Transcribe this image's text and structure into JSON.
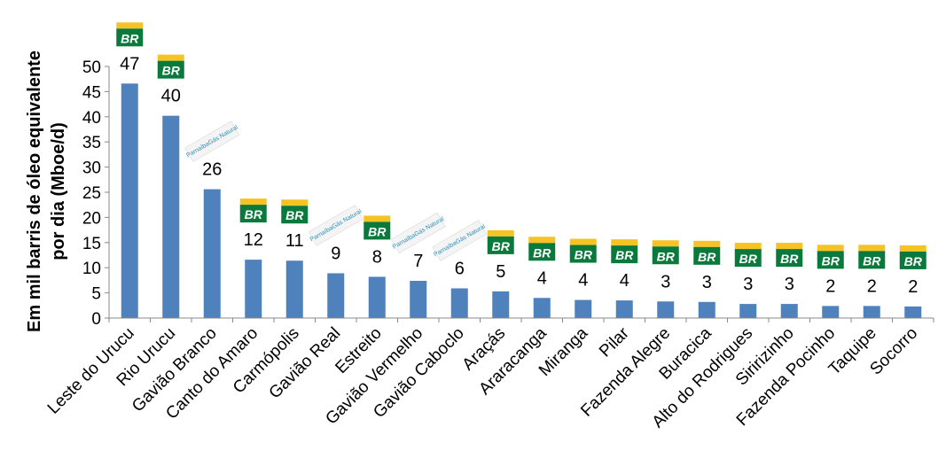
{
  "chart_data": {
    "type": "bar",
    "ylabel": "Em mil barris de óleo equivalente por dia (Mboe/d)",
    "ylabel_lines": [
      "Em mil barris de óleo equivalente",
      "por dia (Mboe/d)"
    ],
    "ylim": [
      0,
      50
    ],
    "yticks": [
      0,
      5,
      10,
      15,
      20,
      25,
      30,
      35,
      40,
      45,
      50
    ],
    "grid": false,
    "bar_color": "#4f81bd",
    "categories": [
      "Leste do Urucu",
      "Rio Urucu",
      "Gavião Branco",
      "Canto do Amaro",
      "Carmópolis",
      "Gavião Real",
      "Estreito",
      "Gavião Vermelho",
      "Gavião Caboclo",
      "Araçás",
      "Araracanga",
      "Miranga",
      "Pilar",
      "Fazenda Alegre",
      "Buracica",
      "Alto do Rodrigues",
      "Siririzinho",
      "Fazenda Pocinho",
      "Taquipe",
      "Socorro"
    ],
    "values": [
      46.6,
      40.2,
      25.6,
      11.6,
      11.4,
      8.9,
      8.2,
      7.4,
      5.9,
      5.3,
      4.0,
      3.6,
      3.5,
      3.3,
      3.2,
      2.8,
      2.8,
      2.4,
      2.4,
      2.3
    ],
    "data_labels": [
      "47",
      "40",
      "26",
      "12",
      "11",
      "9",
      "8",
      "7",
      "6",
      "5",
      "4",
      "4",
      "4",
      "3",
      "3",
      "3",
      "3",
      "2",
      "2",
      "2"
    ],
    "operators": [
      "BR",
      "BR",
      "PG",
      "BR",
      "BR",
      "PG",
      "BR",
      "PG",
      "PG",
      "BR",
      "BR",
      "BR",
      "BR",
      "BR",
      "BR",
      "BR",
      "BR",
      "BR",
      "BR",
      "BR"
    ]
  },
  "logos": {
    "br": {
      "text": "BR",
      "green": "#0a7a3c",
      "yellow": "#f5c324"
    },
    "parnaiba": {
      "text": "ParnaíbaGás Natural",
      "color": "#2a8fb8"
    }
  }
}
